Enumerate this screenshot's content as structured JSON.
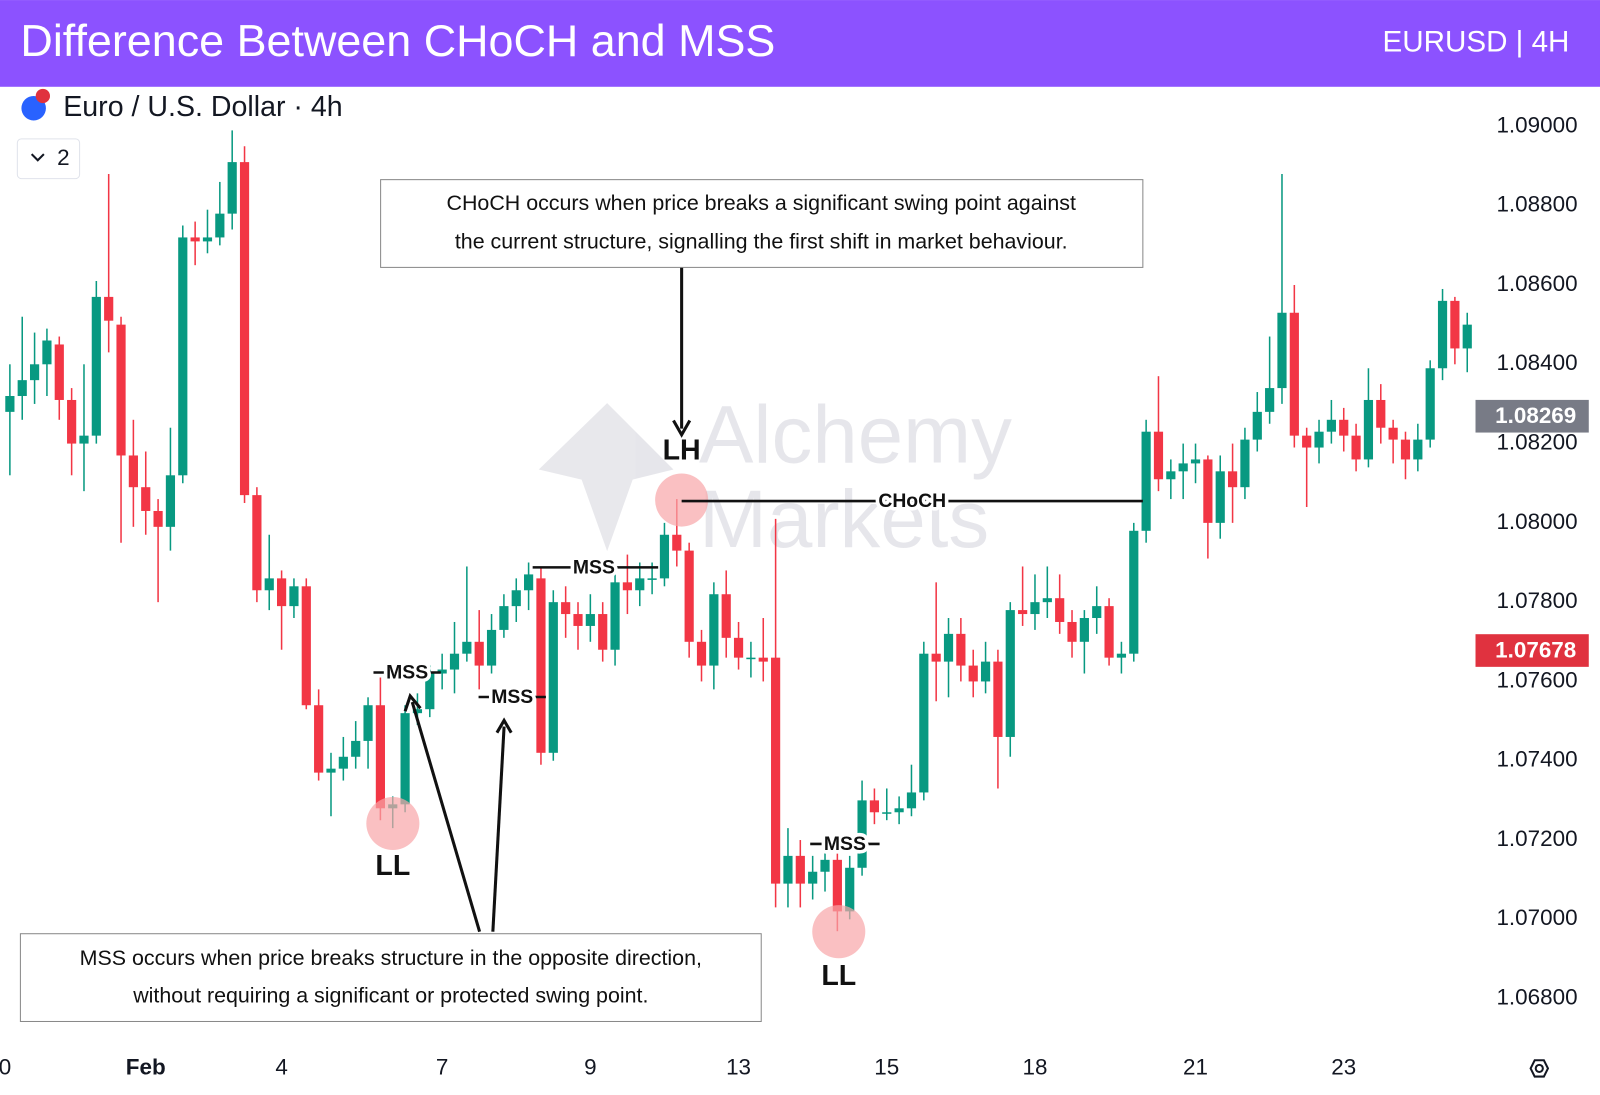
{
  "header": {
    "title": "Difference Between CHoCH and MSS",
    "badge": "EURUSD | 4H"
  },
  "watermark": [
    "Alchemy",
    "Markets"
  ],
  "chart_data": {
    "type": "candlestick",
    "symbol": "Euro / U.S. Dollar · 4h",
    "indicators": 2,
    "up_color": "#089981",
    "down_color": "#f23645",
    "grid": false,
    "xlim": [
      -0.8,
      119
    ],
    "ylim": [
      1.0675,
      1.091
    ],
    "xticks": [
      {
        "value": -0.4,
        "label": "0"
      },
      {
        "value": 11,
        "label": "Feb"
      },
      {
        "value": 22,
        "label": "4"
      },
      {
        "value": 35,
        "label": "7"
      },
      {
        "value": 47,
        "label": "9"
      },
      {
        "value": 59,
        "label": "13"
      },
      {
        "value": 71,
        "label": "15"
      },
      {
        "value": 83,
        "label": "18"
      },
      {
        "value": 96,
        "label": "21"
      },
      {
        "value": 108,
        "label": "23"
      }
    ],
    "yticks": [
      {
        "value": 1.068,
        "label": "1.06800"
      },
      {
        "value": 1.07,
        "label": "1.07000"
      },
      {
        "value": 1.072,
        "label": "1.07200"
      },
      {
        "value": 1.074,
        "label": "1.07400"
      },
      {
        "value": 1.076,
        "label": "1.07600"
      },
      {
        "value": 1.078,
        "label": "1.07800"
      },
      {
        "value": 1.08,
        "label": "1.08000"
      },
      {
        "value": 1.082,
        "label": "1.08200"
      },
      {
        "value": 1.084,
        "label": "1.08400"
      },
      {
        "value": 1.086,
        "label": "1.08600"
      },
      {
        "value": 1.088,
        "label": "1.08800"
      },
      {
        "value": 1.09,
        "label": "1.09000"
      }
    ],
    "price_tags": [
      {
        "value": 1.08269,
        "label": "1.08269",
        "color": "#787b86"
      },
      {
        "value": 1.07678,
        "label": "1.07678",
        "color": "#e0323f"
      }
    ],
    "open": [
      1.0828,
      1.0832,
      1.0836,
      1.084,
      1.0845,
      1.0831,
      1.082,
      1.0822,
      1.0857,
      1.085,
      1.0817,
      1.0809,
      1.0803,
      1.0799,
      1.0812,
      1.0872,
      1.0871,
      1.0872,
      1.0878,
      1.0891,
      1.0807,
      1.0783,
      1.0786,
      1.0779,
      1.0784,
      1.0754,
      1.0737,
      1.0738,
      1.0741,
      1.0745,
      1.0754,
      1.0728,
      1.0729,
      1.0752,
      1.0753,
      1.0762,
      1.0763,
      1.0767,
      1.077,
      1.0764,
      1.0773,
      1.0779,
      1.0783,
      1.0786,
      1.0742,
      1.078,
      1.0777,
      1.0774,
      1.0777,
      1.0768,
      1.0785,
      1.0783,
      1.0786,
      1.0786,
      1.0797,
      1.0793,
      1.077,
      1.0764,
      1.0782,
      1.0771,
      1.0766,
      1.0766,
      1.0766,
      1.0709,
      1.0716,
      1.0709,
      1.0712,
      1.0715,
      1.0702,
      1.0713,
      1.073,
      1.0727,
      1.0727,
      1.0728,
      1.0732,
      1.0767,
      1.0765,
      1.0772,
      1.0764,
      1.076,
      1.0765,
      1.0746,
      1.0778,
      1.0777,
      1.078,
      1.0781,
      1.0775,
      1.077,
      1.0776,
      1.0779,
      1.0766,
      1.0767,
      1.0798,
      1.0823,
      1.0811,
      1.0813,
      1.0815,
      1.0816,
      1.08,
      1.0813,
      1.0809,
      1.0821,
      1.0828,
      1.0834,
      1.0853,
      1.0822,
      1.0819,
      1.0823,
      1.0826,
      1.0822,
      1.0816,
      1.0831,
      1.0824,
      1.0821,
      1.0816,
      1.0821,
      1.0839,
      1.0856,
      1.0844
    ],
    "high": [
      1.084,
      1.0852,
      1.0848,
      1.0849,
      1.0847,
      1.0834,
      1.084,
      1.0861,
      1.0888,
      1.0852,
      1.0826,
      1.0818,
      1.0806,
      1.0824,
      1.0875,
      1.0876,
      1.0879,
      1.0886,
      1.0899,
      1.0895,
      1.0809,
      1.0797,
      1.0788,
      1.0786,
      1.0786,
      1.0758,
      1.0742,
      1.0746,
      1.075,
      1.0756,
      1.0761,
      1.0731,
      1.0754,
      1.0757,
      1.0764,
      1.0767,
      1.0775,
      1.0789,
      1.0778,
      1.0777,
      1.0782,
      1.0786,
      1.079,
      1.0789,
      1.0783,
      1.0784,
      1.078,
      1.0782,
      1.078,
      1.0788,
      1.0792,
      1.079,
      1.079,
      1.08,
      1.0806,
      1.0795,
      1.0773,
      1.0785,
      1.0788,
      1.0775,
      1.077,
      1.0776,
      1.0801,
      1.0723,
      1.072,
      1.0716,
      1.0718,
      1.0717,
      1.0716,
      1.0735,
      1.0733,
      1.0733,
      1.0731,
      1.0739,
      1.077,
      1.0785,
      1.0776,
      1.0776,
      1.0768,
      1.077,
      1.0768,
      1.078,
      1.0789,
      1.0787,
      1.0789,
      1.0787,
      1.0778,
      1.0778,
      1.0784,
      1.0781,
      1.077,
      1.08,
      1.0826,
      1.0837,
      1.0816,
      1.082,
      1.082,
      1.0817,
      1.0817,
      1.082,
      1.0824,
      1.0833,
      1.0847,
      1.0888,
      1.086,
      1.0824,
      1.0826,
      1.0831,
      1.0829,
      1.0825,
      1.0839,
      1.0835,
      1.0826,
      1.0823,
      1.0825,
      1.0841,
      1.0859,
      1.0857,
      1.0853
    ],
    "low": [
      1.0812,
      1.0826,
      1.083,
      1.0832,
      1.0826,
      1.0812,
      1.0808,
      1.082,
      1.0843,
      1.0795,
      1.0799,
      1.0797,
      1.078,
      1.0793,
      1.081,
      1.0865,
      1.0868,
      1.087,
      1.0874,
      1.0805,
      1.078,
      1.0778,
      1.0768,
      1.0776,
      1.0753,
      1.0735,
      1.0726,
      1.0735,
      1.0738,
      1.0738,
      1.0725,
      1.0723,
      1.0727,
      1.0749,
      1.0751,
      1.0758,
      1.0757,
      1.0765,
      1.0758,
      1.0762,
      1.0771,
      1.0775,
      1.0778,
      1.0739,
      1.074,
      1.0771,
      1.0768,
      1.077,
      1.0765,
      1.0764,
      1.0777,
      1.0779,
      1.0782,
      1.0784,
      1.0789,
      1.0766,
      1.076,
      1.0758,
      1.0766,
      1.0763,
      1.0761,
      1.076,
      1.0703,
      1.0703,
      1.0703,
      1.0705,
      1.0707,
      1.0697,
      1.07,
      1.0711,
      1.0724,
      1.0725,
      1.0724,
      1.0726,
      1.073,
      1.0755,
      1.0756,
      1.076,
      1.0756,
      1.0757,
      1.0733,
      1.0741,
      1.0774,
      1.0773,
      1.0776,
      1.0772,
      1.0766,
      1.0762,
      1.0772,
      1.0764,
      1.0762,
      1.0765,
      1.0795,
      1.0808,
      1.0806,
      1.0806,
      1.081,
      1.0791,
      1.0796,
      1.08,
      1.0806,
      1.0818,
      1.0825,
      1.083,
      1.0819,
      1.0804,
      1.0815,
      1.082,
      1.0818,
      1.0813,
      1.0814,
      1.082,
      1.0815,
      1.0811,
      1.0813,
      1.0819,
      1.0836,
      1.084,
      1.0838
    ],
    "close": [
      1.0832,
      1.0836,
      1.084,
      1.0846,
      1.0831,
      1.082,
      1.0822,
      1.0857,
      1.0851,
      1.0817,
      1.0809,
      1.0803,
      1.0799,
      1.0812,
      1.0872,
      1.0871,
      1.0872,
      1.0878,
      1.0891,
      1.0807,
      1.0783,
      1.0786,
      1.0779,
      1.0784,
      1.0754,
      1.0737,
      1.0738,
      1.0741,
      1.0745,
      1.0754,
      1.0728,
      1.0729,
      1.0752,
      1.0753,
      1.0762,
      1.0763,
      1.0767,
      1.077,
      1.0764,
      1.0773,
      1.0779,
      1.0783,
      1.0787,
      1.0742,
      1.078,
      1.0777,
      1.0774,
      1.0777,
      1.0768,
      1.0785,
      1.0783,
      1.0786,
      1.0786,
      1.0797,
      1.0793,
      1.077,
      1.0764,
      1.0782,
      1.0771,
      1.0766,
      1.0766,
      1.0765,
      1.0709,
      1.0716,
      1.0709,
      1.0712,
      1.0715,
      1.0702,
      1.0713,
      1.073,
      1.0727,
      1.0727,
      1.0728,
      1.0732,
      1.0767,
      1.0765,
      1.0772,
      1.0764,
      1.076,
      1.0765,
      1.0746,
      1.0778,
      1.0777,
      1.078,
      1.0781,
      1.0775,
      1.077,
      1.0776,
      1.0779,
      1.0766,
      1.0767,
      1.0798,
      1.0823,
      1.0811,
      1.0813,
      1.0815,
      1.0816,
      1.08,
      1.0813,
      1.0809,
      1.0821,
      1.0828,
      1.0834,
      1.0853,
      1.0822,
      1.0819,
      1.0823,
      1.0826,
      1.0822,
      1.0816,
      1.0831,
      1.0824,
      1.0821,
      1.0816,
      1.0821,
      1.0839,
      1.0856,
      1.0844,
      1.085
    ],
    "annotations": {
      "choch_note": [
        "CHoCH occurs when price breaks a significant swing point against",
        "the current structure, signalling the first shift in market behaviour."
      ],
      "mss_note": [
        "MSS occurs when price breaks structure in the opposite direction,",
        "without requiring a significant or protected swing point."
      ],
      "swing_labels": [
        "LH",
        "LL",
        "LL"
      ],
      "mss": [
        "MSS",
        "MSS",
        "MSS",
        "MSS"
      ],
      "choch": "CHoCH"
    }
  }
}
